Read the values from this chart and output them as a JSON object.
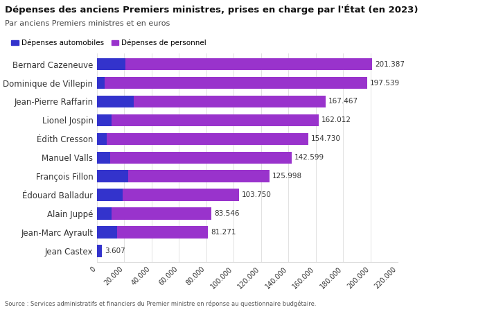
{
  "title": "Dépenses des anciens Premiers ministres, prises en charge par l'État (en 2023)",
  "subtitle": "Par anciens Premiers ministres et en euros",
  "legend_auto": "Dépenses automobiles",
  "legend_perso": "Dépenses de personnel",
  "source": "Source : Services administratifs et financiers du Premier ministre en réponse au questionnaire budgétaire.",
  "names": [
    "Bernard Cazeneuve",
    "Dominique de Villepin",
    "Jean-Pierre Raffarin",
    "Lionel Jospin",
    "Édith Cresson",
    "Manuel Valls",
    "François Fillon",
    "Édouard Balladur",
    "Alain Juppé",
    "Jean-Marc Ayrault",
    "Jean Castex"
  ],
  "auto": [
    21000,
    5500,
    27000,
    10500,
    7200,
    9800,
    23000,
    19000,
    10500,
    14500,
    3607
  ],
  "perso": [
    180387,
    192039,
    140467,
    151512,
    147530,
    132799,
    102998,
    84750,
    73046,
    66771,
    0
  ],
  "totals": [
    201387,
    197539,
    167467,
    162012,
    154730,
    142599,
    125998,
    103750,
    83546,
    81271,
    3607
  ],
  "color_auto": "#3333cc",
  "color_perso": "#9933cc",
  "bg_color": "#ffffff",
  "text_color": "#333333",
  "grid_color": "#dddddd",
  "xlim": [
    0,
    220000
  ],
  "xticks": [
    0,
    20000,
    40000,
    60000,
    80000,
    100000,
    120000,
    140000,
    160000,
    180000,
    200000,
    220000
  ]
}
